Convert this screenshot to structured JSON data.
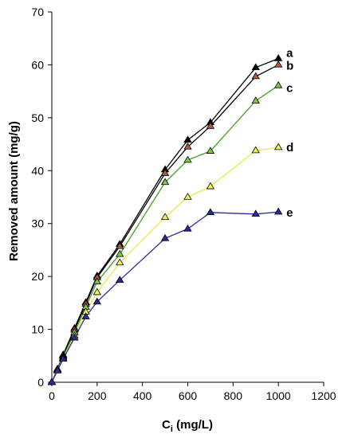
{
  "chart_data": {
    "type": "line",
    "title": "",
    "xlabel_main": "C",
    "xlabel_sub": "i",
    "xlabel_unit": " (mg/L)",
    "ylabel": "Removed amount (mg/g)",
    "xlim": [
      0,
      1200
    ],
    "ylim": [
      0,
      70
    ],
    "xticks": [
      0,
      200,
      400,
      600,
      800,
      1000,
      1200
    ],
    "yticks": [
      0,
      10,
      20,
      30,
      40,
      50,
      60,
      70
    ],
    "grid": false,
    "marker": "triangle",
    "series": [
      {
        "name": "a",
        "color": "#000000",
        "line_color": "#000000",
        "x": [
          0,
          25,
          50,
          100,
          150,
          200,
          300,
          500,
          600,
          700,
          900,
          1000
        ],
        "y": [
          0,
          2.5,
          5.2,
          10.2,
          15.1,
          20.1,
          26.1,
          40.2,
          45.8,
          49.1,
          59.5,
          61.2
        ]
      },
      {
        "name": "b",
        "color": "#b05a40",
        "line_color": "#000000",
        "x": [
          0,
          25,
          50,
          100,
          150,
          200,
          300,
          500,
          600,
          700,
          900,
          1000
        ],
        "y": [
          0,
          2.4,
          5.0,
          9.9,
          14.8,
          19.8,
          25.7,
          39.5,
          44.5,
          48.4,
          57.8,
          60.0
        ]
      },
      {
        "name": "c",
        "color": "#7ac943",
        "line_color": "#4a9a2a",
        "x": [
          0,
          25,
          50,
          100,
          150,
          200,
          300,
          500,
          600,
          700,
          900,
          1000
        ],
        "y": [
          0,
          2.3,
          4.8,
          9.4,
          14.2,
          19.0,
          24.2,
          37.8,
          42.0,
          43.7,
          53.2,
          56.1
        ]
      },
      {
        "name": "d",
        "color": "#f2f25c",
        "line_color": "#e8e84a",
        "x": [
          0,
          25,
          50,
          100,
          150,
          200,
          300,
          500,
          600,
          700,
          900,
          1000
        ],
        "y": [
          0,
          2.2,
          4.6,
          8.8,
          13.3,
          17.0,
          22.6,
          31.2,
          35.0,
          37.0,
          43.8,
          44.4
        ]
      },
      {
        "name": "e",
        "color": "#2b2b9a",
        "line_color": "#2b2b9a",
        "x": [
          0,
          25,
          50,
          100,
          150,
          200,
          300,
          500,
          600,
          700,
          900,
          1000
        ],
        "y": [
          0,
          2.2,
          4.4,
          8.4,
          12.4,
          15.2,
          19.3,
          27.2,
          29.0,
          32.1,
          31.8,
          32.2
        ]
      }
    ]
  }
}
